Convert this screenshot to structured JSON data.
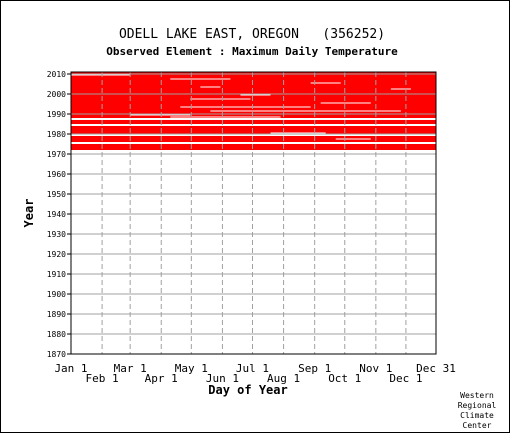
{
  "chart_data": {
    "type": "heatmap",
    "title": "ODELL LAKE EAST, OREGON   (356252)",
    "subtitle": "Observed Element : Maximum Daily Temperature",
    "xlabel": "Day of Year",
    "ylabel": "Year",
    "xlim": [
      1,
      365
    ],
    "ylim": [
      1870,
      2011
    ],
    "grid": true,
    "mark_color": "#ff0000",
    "x_ticks_upper": [
      {
        "label": "Jan 1",
        "day": 1
      },
      {
        "label": "Mar 1",
        "day": 60
      },
      {
        "label": "May 1",
        "day": 121
      },
      {
        "label": "Jul 1",
        "day": 182
      },
      {
        "label": "Sep 1",
        "day": 244
      },
      {
        "label": "Nov 1",
        "day": 305
      },
      {
        "label": "Dec 31",
        "day": 365
      }
    ],
    "x_ticks_lower": [
      {
        "label": "Feb 1",
        "day": 32
      },
      {
        "label": "Apr 1",
        "day": 91
      },
      {
        "label": "Jun 1",
        "day": 152
      },
      {
        "label": "Aug 1",
        "day": 213
      },
      {
        "label": "Oct 1",
        "day": 274
      },
      {
        "label": "Dec 1",
        "day": 335
      }
    ],
    "y_ticks": [
      1870,
      1880,
      1890,
      1900,
      1910,
      1920,
      1930,
      1940,
      1950,
      1960,
      1970,
      1980,
      1990,
      2000,
      2010
    ],
    "observed_year_ranges": [
      {
        "from": 1972,
        "to": 1974
      },
      {
        "from": 1976,
        "to": 1978
      },
      {
        "from": 1980,
        "to": 1983
      },
      {
        "from": 1985,
        "to": 1986
      },
      {
        "from": 1988,
        "to": 2010
      }
    ],
    "missing_segments": [
      {
        "year": 2009,
        "start_day": 1,
        "end_day": 60
      },
      {
        "year": 2007,
        "start_day": 100,
        "end_day": 160
      },
      {
        "year": 2005,
        "start_day": 240,
        "end_day": 270
      },
      {
        "year": 2003,
        "start_day": 130,
        "end_day": 150
      },
      {
        "year": 2002,
        "start_day": 320,
        "end_day": 340
      },
      {
        "year": 1999,
        "start_day": 170,
        "end_day": 200
      },
      {
        "year": 1997,
        "start_day": 120,
        "end_day": 180
      },
      {
        "year": 1995,
        "start_day": 250,
        "end_day": 300
      },
      {
        "year": 1993,
        "start_day": 110,
        "end_day": 240
      },
      {
        "year": 1991,
        "start_day": 140,
        "end_day": 330
      },
      {
        "year": 1989,
        "start_day": 60,
        "end_day": 120
      },
      {
        "year": 1988,
        "start_day": 100,
        "end_day": 210
      },
      {
        "year": 1980,
        "start_day": 200,
        "end_day": 255
      },
      {
        "year": 1977,
        "start_day": 265,
        "end_day": 300
      }
    ]
  },
  "footer": {
    "line1": "Western",
    "line2": "Regional",
    "line3": "Climate",
    "line4": "Center"
  }
}
